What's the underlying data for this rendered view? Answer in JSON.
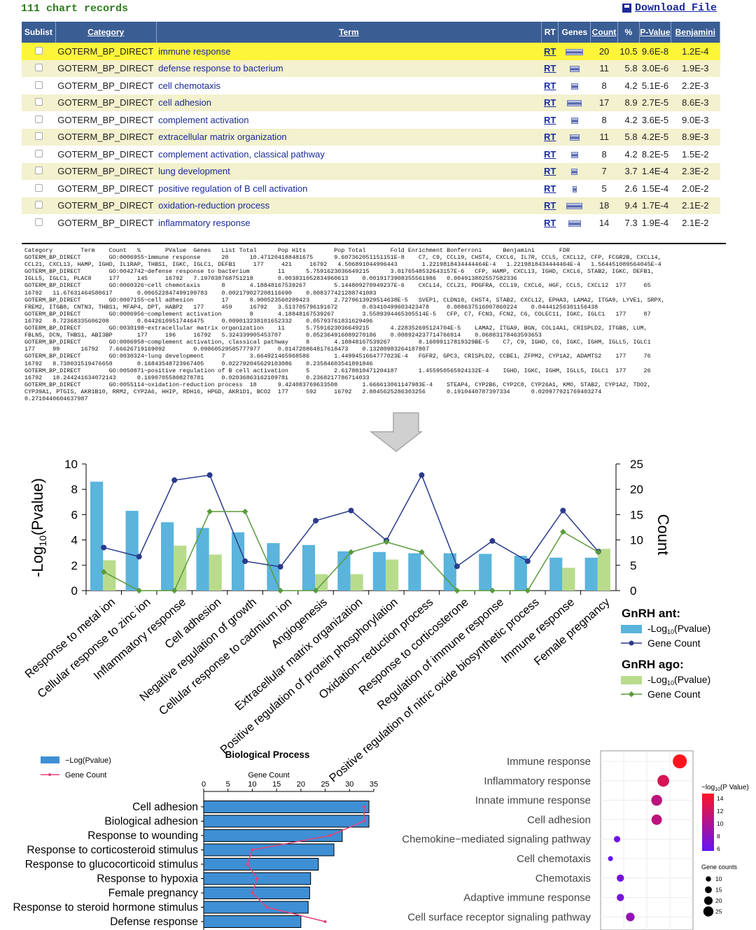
{
  "top": {
    "record_count": "111 chart records",
    "download_label": "Download File"
  },
  "table": {
    "headers": [
      "Sublist",
      "Category",
      "Term",
      "RT",
      "Genes",
      "Count",
      "%",
      "P-Value",
      "Benjamini"
    ],
    "rows": [
      {
        "category": "GOTERM_BP_DIRECT",
        "term": "immune response",
        "rt": "RT",
        "genes": 20,
        "count": "20",
        "pct": "10.5",
        "pvalue": "9.6E-8",
        "benjamini": "1.2E-4"
      },
      {
        "category": "GOTERM_BP_DIRECT",
        "term": "defense response to bacterium",
        "rt": "RT",
        "genes": 11,
        "count": "11",
        "pct": "5.8",
        "pvalue": "3.0E-6",
        "benjamini": "1.9E-3"
      },
      {
        "category": "GOTERM_BP_DIRECT",
        "term": "cell chemotaxis",
        "rt": "RT",
        "genes": 8,
        "count": "8",
        "pct": "4.2",
        "pvalue": "5.1E-6",
        "benjamini": "2.2E-3"
      },
      {
        "category": "GOTERM_BP_DIRECT",
        "term": "cell adhesion",
        "rt": "RT",
        "genes": 17,
        "count": "17",
        "pct": "8.9",
        "pvalue": "2.7E-5",
        "benjamini": "8.6E-3"
      },
      {
        "category": "GOTERM_BP_DIRECT",
        "term": "complement activation",
        "rt": "RT",
        "genes": 8,
        "count": "8",
        "pct": "4.2",
        "pvalue": "3.6E-5",
        "benjamini": "9.0E-3"
      },
      {
        "category": "GOTERM_BP_DIRECT",
        "term": "extracellular matrix organization",
        "rt": "RT",
        "genes": 11,
        "count": "11",
        "pct": "5.8",
        "pvalue": "4.2E-5",
        "benjamini": "8.9E-3"
      },
      {
        "category": "GOTERM_BP_DIRECT",
        "term": "complement activation, classical pathway",
        "rt": "RT",
        "genes": 8,
        "count": "8",
        "pct": "4.2",
        "pvalue": "8.2E-5",
        "benjamini": "1.5E-2"
      },
      {
        "category": "GOTERM_BP_DIRECT",
        "term": "lung development",
        "rt": "RT",
        "genes": 7,
        "count": "7",
        "pct": "3.7",
        "pvalue": "1.4E-4",
        "benjamini": "2.3E-2"
      },
      {
        "category": "GOTERM_BP_DIRECT",
        "term": "positive regulation of B cell activation",
        "rt": "RT",
        "genes": 5,
        "count": "5",
        "pct": "2.6",
        "pvalue": "1.5E-4",
        "benjamini": "2.0E-2"
      },
      {
        "category": "GOTERM_BP_DIRECT",
        "term": "oxidation-reduction process",
        "rt": "RT",
        "genes": 18,
        "count": "18",
        "pct": "9.4",
        "pvalue": "1.7E-4",
        "benjamini": "2.1E-2"
      },
      {
        "category": "GOTERM_BP_DIRECT",
        "term": "inflammatory response",
        "rt": "RT",
        "genes": 14,
        "count": "14",
        "pct": "7.3",
        "pvalue": "1.9E-4",
        "benjamini": "2.1E-2"
      }
    ]
  },
  "raw_text": "Category        Term    Count   %       PValue  Genes   List Total      Pop Hits        Pop Total       Fold Enrichment Bonferroni      Benjamini       FDR\nGOTERM_BP_DIRECT        GO:0006955~immune response      20      10.471204188481675      9.607362051151151E-8    C7, C9, CCL19, CHST4, CXCL6, IL7R, CCL5, CXCL12, CFP, FCGR2B, CXCL14,\nCCL21, CXCL13, HAMP, IGHD, IL1RAP, THBS1, IGKC, IGLC1, DEFB1     177     421     16792   4.506891044996443       1.2219818434444464E-4   1.2219818434444464E-4   1.564451089564045E-4\nGOTERM_BP_DIRECT        GO:0042742~defense response to bacterium        11      5.7591623036649215      3.0176548532643157E-6   CFP, HAMP, CXCL13, IGHD, CXCL6, STAB2, IGKC, DEFB1,\nIGLL5, IGLC1, PLAC8     177     145     16792   7.197038768751218       0.003831052834960613    0.0019173908355561986   0.004913802557582336\nGOTERM_BP_DIRECT        GO:0060326~cell chemotaxis      8       4.18848167539267        5.144809270949237E-6    CXCL14, CCL21, PDGFRA, CCL19, CXCL6, HGF, CCL5, CXCL12  177     65\n16792   11.67631464580617       0.006522847499199783    0.002179027208116690    0.008377421288741083\nGOTERM_BP_DIRECT        GO:0007155~cell adhesion        17      8.900523560209423       2.7279613929514638E-5   SVEP1, CLDN10, CHST4, STAB2, CXCL12, EPHA3, LAMA2, ITGA9, LYVE1, SRPX,\nFREM2, ITGB8, CNTN3, THBS1, MFAP4, DPT, HABP2   177     459     16792   3.513705796191672       0.03410499603423478     0.008637516007860224    0.04441256301156438\nGOTERM_BP_DIRECT        GO:0006956~complement activation        8       4.18848167539267        3.5589394465305514E-5   CFP, C7, FCN3, FCN2, C6, COLEC11, IGKC, IGLC1   177     87\n16792   8.72368335606208        0.04426109517446475     0.009013238101652332    0.05793761831629496\nGOTERM_BP_DIRECT        GO:0030198~extracellular matrix organization    11      5.7591623036649215      4.228352695124704E-5    LAMA2, ITGA9, BGN, COL14A1, CRISPLD2, ITGB8, LUM,\nFBLN5, DCN, THBS1, ABI3BP       177     196     16792   5.324339905453707       0.052364916089270186    0.008924237714766914    0.06883178463593653\nGOTERM_BP_DIRECT        GO:0006958~complement activation, classical pathway     8       4.18848167539267        8.16099117819329BE-5    C7, C9, IGHD, C6, IGKC, IGHM, IGLL5, IGLC1\n177     99      16792   7.66626719169092        0.09860529585777977     0.014720864817618473    0.13280983264187807\nGOTERM_BP_DIRECT        GO:0030324~lung development     7       3.664921465968586       1.4499451664777023E-4   FGFR2, GPC3, CRISPLD2, CCBE1, ZFPM2, CYP1A2, ADAMTS2    177     76\n16792   8.738031519476658       0.16843548723967405     0.022792045629103086    0.23584603541891846\nGOTERM_BP_DIRECT        GO:0050871~positive regulation of B cell activation     5       2.6178010471204187      1.455950565924132E-4    IGHD, IGKC, IGHM, IGLL5, IGLC1  177     26\n16792   18.244241634072143      0.16907055808278781     0.02036863162109781     0.2368217786714033\nGOTERM_BP_DIRECT        GO:0055114~oxidation-reduction process  18      9.424083769633508       1.666613061147983E-4    STEAP4, CYP2B6, CYP2C8, CYP26A1, KMO, STAB2, CYP1A2, TDO2,\nCYP39A1, PTGIS, AKR1B10, RRM2, CYP2A6, HHIP, RDH16, HPGD, AKR1D1, BCO2  177     592     16792   2.8845625286303256      0.1910440787397334      0.020977921769403274\n0.2710440604637987",
  "chart_data": [
    {
      "type": "bar",
      "title": "",
      "ylabel": "-Log10(Pvalue)",
      "ylabel_main": "-Log",
      "ylabel_sub": "10",
      "ylabel_tail": "(Pvalue)",
      "y2label": "Count",
      "ylim": [
        0,
        10
      ],
      "y2lim": [
        0,
        25
      ],
      "yticks": [
        "0",
        "2",
        "4",
        "6",
        "8",
        "10"
      ],
      "y2ticks": [
        "0",
        "5",
        "10",
        "15",
        "20",
        "25"
      ],
      "categories": [
        "Response to metal ion",
        "Cellular response to zinc ion",
        "Inflammatory response",
        "Cell adhesion",
        "Negative regulation of growth",
        "Cellular response to cadmium ion",
        "Angiogenesis",
        "Extracellular matrix organization",
        "Positive regulation of protein phosphorylation",
        "Oxidation−reduction process",
        "Response to corticosterone",
        "Regulation of immune response",
        "Positive regulation of nitric oxide biosynthetic process",
        "Immune response",
        "Female pregnancy"
      ],
      "legend": {
        "group1": "GnRH ant:",
        "group2": "GnRH ago:",
        "bar": "-Log",
        "bar_sub": "10",
        "bar_tail": "(Pvalue)",
        "line": "Gene Count"
      },
      "series": [
        {
          "name": "GnRH ant: -Log10(Pvalue)",
          "kind": "bar",
          "color": "#5ab4dc",
          "values": [
            8.6,
            6.3,
            5.4,
            4.95,
            4.6,
            3.75,
            3.6,
            3.1,
            3.05,
            2.95,
            2.95,
            2.9,
            2.75,
            2.6,
            2.6
          ]
        },
        {
          "name": "GnRH ago: -Log10(Pvalue)",
          "kind": "bar",
          "color": "#b8dc8c",
          "values": [
            2.4,
            0,
            3.55,
            2.85,
            0,
            0,
            1.3,
            1.3,
            2.45,
            0,
            0,
            0,
            0,
            1.8,
            3.3
          ]
        },
        {
          "name": "GnRH ant: Gene Count",
          "kind": "line",
          "color": "#2b3b8c",
          "values": [
            8.5,
            6.7,
            21.8,
            22.8,
            5.8,
            4.7,
            13.8,
            15.8,
            9.9,
            22.8,
            4.8,
            9.8,
            5.8,
            15.8,
            7.7
          ]
        },
        {
          "name": "GnRH ago: Gene Count",
          "kind": "line",
          "color": "#5a9a3a",
          "values": [
            3.7,
            0,
            0,
            15.6,
            15.6,
            0,
            0,
            7.6,
            9.6,
            7.6,
            0,
            0,
            0,
            11.6,
            7.6
          ]
        }
      ]
    },
    {
      "type": "bar",
      "title": "Biological Process",
      "xlabel": "Gene Count",
      "xlim": [
        0,
        35
      ],
      "xticks": [
        "0",
        "5",
        "10",
        "15",
        "20",
        "25",
        "30",
        "35"
      ],
      "legend": {
        "bar": "−Log(Pvalue)",
        "line": "Gene Count"
      },
      "categories": [
        "Cell adhesion",
        "Biological adhesion",
        "Response to wounding",
        "Response to corticosteroid stimulus",
        "Response to glucocorticoid stimulus",
        "Response to hypoxia",
        "Female pregnancy",
        "Response to steroid hormone stimulus",
        "Defense response"
      ],
      "series": [
        {
          "name": "−Log(Pvalue)",
          "kind": "bar",
          "color": "#3f8fd4",
          "values": [
            34,
            34,
            28.5,
            26.8,
            23.6,
            22,
            21.8,
            21.5,
            20
          ]
        },
        {
          "name": "Gene Count",
          "kind": "line",
          "color": "#e0457b",
          "values": [
            33,
            33,
            26,
            10,
            9,
            11,
            10,
            13,
            25
          ]
        }
      ]
    },
    {
      "type": "scatter",
      "title": "",
      "categories": [
        "Immune response",
        "Inflammatory response",
        "Innate immune response",
        "Cell adhesion",
        "Chemokine−mediated signaling pathway",
        "Cell chemotaxis",
        "Chemotaxis",
        "Adaptive immune response",
        "Cell surface receptor signaling pathway"
      ],
      "x": [
        0.082,
        0.077,
        0.075,
        0.075,
        0.063,
        0.061,
        0.064,
        0.064,
        0.067
      ],
      "neglog10_p": [
        14,
        12,
        10.5,
        10.5,
        6.5,
        6,
        7,
        7,
        8.5
      ],
      "gene_counts": [
        25,
        20,
        18,
        17,
        8,
        5,
        10,
        10,
        13
      ],
      "legend": {
        "color_title": "−log",
        "color_sub": "10",
        "color_tail": "(P Value)",
        "color_ticks": [
          "14",
          "12",
          "10",
          "8",
          "6"
        ],
        "size_title": "Gene counts",
        "size_ticks": [
          "10",
          "15",
          "20",
          "25"
        ]
      }
    }
  ]
}
